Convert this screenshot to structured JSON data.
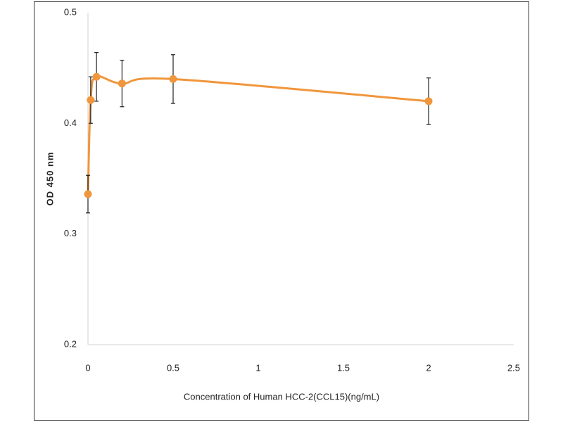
{
  "chart_data": {
    "type": "line",
    "x_label": "Concentration of Human HCC-2(CCL15)(ng/mL)",
    "y_label": "OD 450 nm",
    "x": [
      0,
      0.016,
      0.05,
      0.2,
      0.5,
      2
    ],
    "series": [
      {
        "color": "#f0963c",
        "values": [
          0.336,
          0.421,
          0.442,
          0.436,
          0.44,
          0.42
        ],
        "errors": [
          0.017,
          0.021,
          0.022,
          0.021,
          0.022,
          0.021
        ]
      }
    ],
    "xlim": [
      0,
      2.5
    ],
    "xticks": [
      0,
      0.5,
      1,
      1.5,
      2,
      2.5
    ],
    "ylim": [
      0.2,
      0.5
    ],
    "yticks": [
      0.2,
      0.3,
      0.4,
      0.5
    ],
    "smooth": true
  }
}
